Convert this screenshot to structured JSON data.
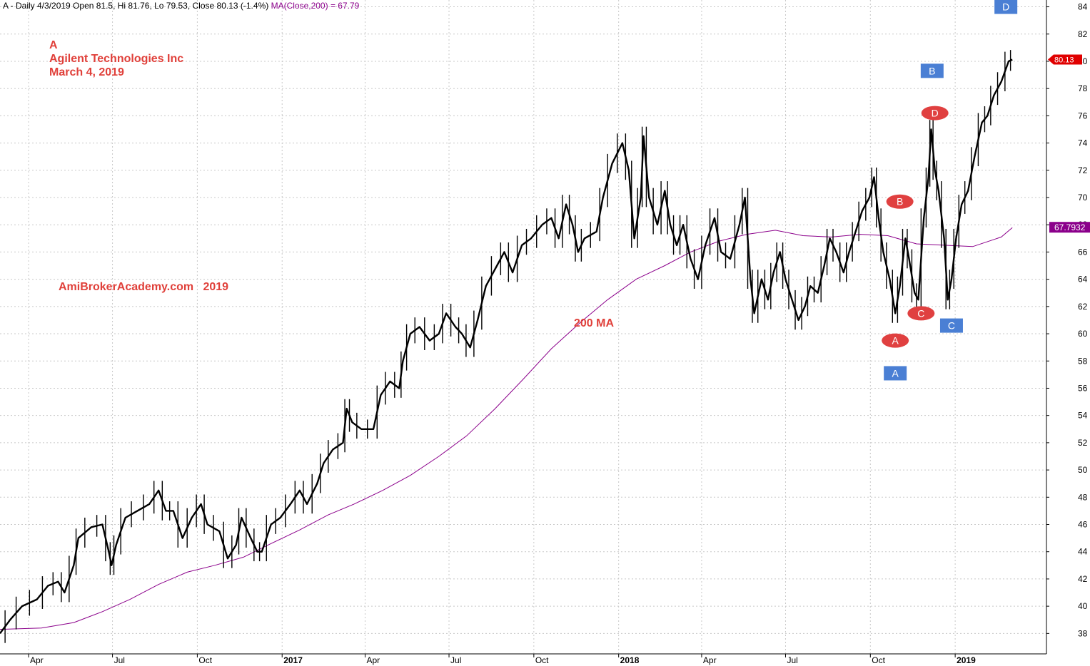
{
  "header": {
    "prefix": "A - Daily 4/3/2019 Open 81.5, Hi 81.76, Lo 79.53, Close 80.13 (-1.4%)",
    "ma_part": "MA(Close,200) = 67.79"
  },
  "annotations": {
    "ticker": "A",
    "company": "Agilent Technologies Inc",
    "date": "March 4, 2019",
    "site": "AmiBrokerAcademy.com   2019",
    "ma_label": "200 MA"
  },
  "colors": {
    "price": "#000000",
    "ma": "#8b008b",
    "grid": "#c8c8c8",
    "pattern_red": "#e04040",
    "pattern_blue": "#4a7fd4",
    "annotation_text": "#e0403a"
  },
  "chart_data": {
    "type": "line",
    "title": "",
    "xlabel": "",
    "ylabel": "",
    "ylim": [
      36.5,
      84.5
    ],
    "y_ticks": [
      38,
      40,
      42,
      44,
      46,
      48,
      50,
      52,
      54,
      56,
      58,
      60,
      62,
      64,
      66,
      68,
      70,
      72,
      74,
      76,
      78,
      80,
      82,
      84
    ],
    "x_ticks": [
      {
        "label": "Apr",
        "date": "2016-04-01"
      },
      {
        "label": "Jul",
        "date": "2016-07-01"
      },
      {
        "label": "Oct",
        "date": "2016-10-01"
      },
      {
        "label": "2017",
        "date": "2017-01-01",
        "bold": true
      },
      {
        "label": "Apr",
        "date": "2017-04-01"
      },
      {
        "label": "Jul",
        "date": "2017-07-01"
      },
      {
        "label": "Oct",
        "date": "2017-10-01"
      },
      {
        "label": "2018",
        "date": "2018-01-01",
        "bold": true
      },
      {
        "label": "Apr",
        "date": "2018-04-01"
      },
      {
        "label": "Jul",
        "date": "2018-07-01"
      },
      {
        "label": "Oct",
        "date": "2018-10-01"
      },
      {
        "label": "2019",
        "date": "2019-01-01",
        "bold": true
      }
    ],
    "x_range": [
      "2016-03-01",
      "2019-04-10"
    ],
    "series": [
      {
        "name": "Price",
        "style": "ohlc",
        "points": [
          [
            "2016-03-01",
            38.0
          ],
          [
            "2016-03-12",
            39.0
          ],
          [
            "2016-03-25",
            40.0
          ],
          [
            "2016-04-10",
            40.5
          ],
          [
            "2016-04-22",
            41.5
          ],
          [
            "2016-05-03",
            41.8
          ],
          [
            "2016-05-10",
            41.0
          ],
          [
            "2016-05-20",
            43.0
          ],
          [
            "2016-05-25",
            45.0
          ],
          [
            "2016-06-08",
            45.8
          ],
          [
            "2016-06-20",
            46.0
          ],
          [
            "2016-06-27",
            44.0
          ],
          [
            "2016-06-30",
            43.0
          ],
          [
            "2016-07-05",
            44.5
          ],
          [
            "2016-07-15",
            46.5
          ],
          [
            "2016-07-28",
            47.0
          ],
          [
            "2016-08-10",
            47.5
          ],
          [
            "2016-08-20",
            48.5
          ],
          [
            "2016-08-28",
            47.0
          ],
          [
            "2016-09-05",
            47.0
          ],
          [
            "2016-09-15",
            45.0
          ],
          [
            "2016-09-25",
            46.5
          ],
          [
            "2016-10-05",
            47.5
          ],
          [
            "2016-10-12",
            46.0
          ],
          [
            "2016-10-25",
            45.5
          ],
          [
            "2016-11-03",
            43.5
          ],
          [
            "2016-11-12",
            44.5
          ],
          [
            "2016-11-18",
            46.5
          ],
          [
            "2016-11-28",
            45.0
          ],
          [
            "2016-12-05",
            44.0
          ],
          [
            "2016-12-10",
            44.0
          ],
          [
            "2016-12-20",
            46.0
          ],
          [
            "2016-12-30",
            46.5
          ],
          [
            "2017-01-10",
            47.5
          ],
          [
            "2017-01-20",
            48.5
          ],
          [
            "2017-01-28",
            47.5
          ],
          [
            "2017-02-08",
            49.0
          ],
          [
            "2017-02-15",
            50.5
          ],
          [
            "2017-02-25",
            51.5
          ],
          [
            "2017-03-08",
            52.0
          ],
          [
            "2017-03-12",
            54.5
          ],
          [
            "2017-03-18",
            53.5
          ],
          [
            "2017-03-28",
            53.0
          ],
          [
            "2017-04-10",
            53.0
          ],
          [
            "2017-04-18",
            55.5
          ],
          [
            "2017-04-28",
            56.5
          ],
          [
            "2017-05-08",
            56.0
          ],
          [
            "2017-05-12",
            58.0
          ],
          [
            "2017-05-20",
            60.0
          ],
          [
            "2017-05-30",
            60.5
          ],
          [
            "2017-06-10",
            59.5
          ],
          [
            "2017-06-20",
            60.0
          ],
          [
            "2017-06-28",
            61.5
          ],
          [
            "2017-07-08",
            60.5
          ],
          [
            "2017-07-15",
            60.0
          ],
          [
            "2017-07-24",
            59.0
          ],
          [
            "2017-08-01",
            61.0
          ],
          [
            "2017-08-10",
            63.5
          ],
          [
            "2017-08-22",
            65.0
          ],
          [
            "2017-08-30",
            66.0
          ],
          [
            "2017-09-08",
            64.5
          ],
          [
            "2017-09-18",
            66.5
          ],
          [
            "2017-09-28",
            67.0
          ],
          [
            "2017-10-10",
            68.0
          ],
          [
            "2017-10-20",
            68.5
          ],
          [
            "2017-10-28",
            67.0
          ],
          [
            "2017-11-05",
            69.5
          ],
          [
            "2017-11-12",
            68.0
          ],
          [
            "2017-11-18",
            66.0
          ],
          [
            "2017-11-25",
            67.0
          ],
          [
            "2017-12-08",
            67.5
          ],
          [
            "2017-12-15",
            70.0
          ],
          [
            "2017-12-25",
            72.5
          ],
          [
            "2018-01-05",
            74.0
          ],
          [
            "2018-01-12",
            72.0
          ],
          [
            "2018-01-18",
            67.0
          ],
          [
            "2018-01-25",
            70.0
          ],
          [
            "2018-01-28",
            74.5
          ],
          [
            "2018-02-03",
            70.0
          ],
          [
            "2018-02-12",
            68.0
          ],
          [
            "2018-02-20",
            70.5
          ],
          [
            "2018-02-26",
            68.0
          ],
          [
            "2018-03-05",
            66.5
          ],
          [
            "2018-03-12",
            68.0
          ],
          [
            "2018-03-20",
            65.5
          ],
          [
            "2018-03-28",
            64.0
          ],
          [
            "2018-04-05",
            66.5
          ],
          [
            "2018-04-15",
            68.5
          ],
          [
            "2018-04-22",
            66.0
          ],
          [
            "2018-05-02",
            65.5
          ],
          [
            "2018-05-12",
            68.0
          ],
          [
            "2018-05-18",
            70.0
          ],
          [
            "2018-05-24",
            64.0
          ],
          [
            "2018-05-28",
            61.5
          ],
          [
            "2018-06-05",
            64.0
          ],
          [
            "2018-06-12",
            62.5
          ],
          [
            "2018-06-18",
            64.5
          ],
          [
            "2018-06-25",
            66.0
          ],
          [
            "2018-07-01",
            64.0
          ],
          [
            "2018-07-08",
            62.5
          ],
          [
            "2018-07-15",
            61.0
          ],
          [
            "2018-07-22",
            62.0
          ],
          [
            "2018-07-28",
            63.5
          ],
          [
            "2018-08-05",
            63.0
          ],
          [
            "2018-08-12",
            65.0
          ],
          [
            "2018-08-18",
            67.0
          ],
          [
            "2018-08-25",
            66.0
          ],
          [
            "2018-09-02",
            64.5
          ],
          [
            "2018-09-08",
            66.0
          ],
          [
            "2018-09-15",
            67.5
          ],
          [
            "2018-09-22",
            69.0
          ],
          [
            "2018-09-30",
            70.0
          ],
          [
            "2018-10-05",
            71.5
          ],
          [
            "2018-10-10",
            68.5
          ],
          [
            "2018-10-15",
            66.0
          ],
          [
            "2018-10-22",
            64.0
          ],
          [
            "2018-10-28",
            61.5
          ],
          [
            "2018-11-02",
            63.5
          ],
          [
            "2018-11-08",
            67.0
          ],
          [
            "2018-11-12",
            65.5
          ],
          [
            "2018-11-18",
            63.0
          ],
          [
            "2018-11-22",
            62.5
          ],
          [
            "2018-11-28",
            68.5
          ],
          [
            "2018-12-03",
            71.5
          ],
          [
            "2018-12-06",
            75.0
          ],
          [
            "2018-12-10",
            72.0
          ],
          [
            "2018-12-14",
            70.5
          ],
          [
            "2018-12-20",
            67.0
          ],
          [
            "2018-12-24",
            62.5
          ],
          [
            "2018-12-28",
            64.0
          ],
          [
            "2019-01-02",
            67.0
          ],
          [
            "2019-01-08",
            69.5
          ],
          [
            "2019-01-15",
            70.5
          ],
          [
            "2019-01-22",
            73.0
          ],
          [
            "2019-01-30",
            75.5
          ],
          [
            "2019-02-05",
            76.0
          ],
          [
            "2019-02-12",
            77.5
          ],
          [
            "2019-02-20",
            78.5
          ],
          [
            "2019-02-28",
            80.0
          ],
          [
            "2019-03-04",
            80.13
          ]
        ]
      },
      {
        "name": "MA(Close,200)",
        "style": "line",
        "points": [
          [
            "2016-03-01",
            38.3
          ],
          [
            "2016-04-15",
            38.4
          ],
          [
            "2016-05-20",
            38.8
          ],
          [
            "2016-06-20",
            39.6
          ],
          [
            "2016-07-20",
            40.5
          ],
          [
            "2016-08-20",
            41.6
          ],
          [
            "2016-09-20",
            42.5
          ],
          [
            "2016-10-20",
            43.0
          ],
          [
            "2016-11-20",
            43.6
          ],
          [
            "2016-12-20",
            44.6
          ],
          [
            "2017-01-20",
            45.6
          ],
          [
            "2017-02-20",
            46.7
          ],
          [
            "2017-03-20",
            47.5
          ],
          [
            "2017-04-20",
            48.5
          ],
          [
            "2017-05-20",
            49.6
          ],
          [
            "2017-06-20",
            51.0
          ],
          [
            "2017-07-20",
            52.5
          ],
          [
            "2017-08-20",
            54.5
          ],
          [
            "2017-09-20",
            56.7
          ],
          [
            "2017-10-20",
            58.9
          ],
          [
            "2017-11-20",
            60.8
          ],
          [
            "2017-12-20",
            62.5
          ],
          [
            "2018-01-20",
            64.0
          ],
          [
            "2018-02-20",
            65.0
          ],
          [
            "2018-03-20",
            66.0
          ],
          [
            "2018-04-20",
            66.8
          ],
          [
            "2018-05-20",
            67.3
          ],
          [
            "2018-06-20",
            67.6
          ],
          [
            "2018-07-20",
            67.2
          ],
          [
            "2018-08-20",
            67.1
          ],
          [
            "2018-09-20",
            67.3
          ],
          [
            "2018-10-20",
            67.2
          ],
          [
            "2018-11-20",
            66.6
          ],
          [
            "2018-12-20",
            66.5
          ],
          [
            "2019-01-20",
            66.4
          ],
          [
            "2019-02-20",
            67.1
          ],
          [
            "2019-03-04",
            67.79
          ]
        ]
      }
    ],
    "last_price_tag": {
      "label": "80.13",
      "value": 80.13
    },
    "ma_tag": {
      "label": "67.7932",
      "value": 67.79
    },
    "markers": [
      {
        "label": "A",
        "shape": "ellipse",
        "color": "red",
        "date": "2018-10-28",
        "value": 59.5
      },
      {
        "label": "B",
        "shape": "ellipse",
        "color": "red",
        "date": "2018-11-02",
        "value": 69.7
      },
      {
        "label": "C",
        "shape": "ellipse",
        "color": "red",
        "date": "2018-11-25",
        "value": 61.5
      },
      {
        "label": "D",
        "shape": "ellipse",
        "color": "red",
        "date": "2018-12-10",
        "value": 76.2
      },
      {
        "label": "A",
        "shape": "box",
        "color": "blue",
        "date": "2018-10-28",
        "value": 57.1
      },
      {
        "label": "B",
        "shape": "box",
        "color": "blue",
        "date": "2018-12-07",
        "value": 79.3
      },
      {
        "label": "C",
        "shape": "box",
        "color": "blue",
        "date": "2018-12-28",
        "value": 60.6
      },
      {
        "label": "D",
        "shape": "box",
        "color": "blue",
        "date": "2019-02-25",
        "value": 84.0
      }
    ]
  }
}
